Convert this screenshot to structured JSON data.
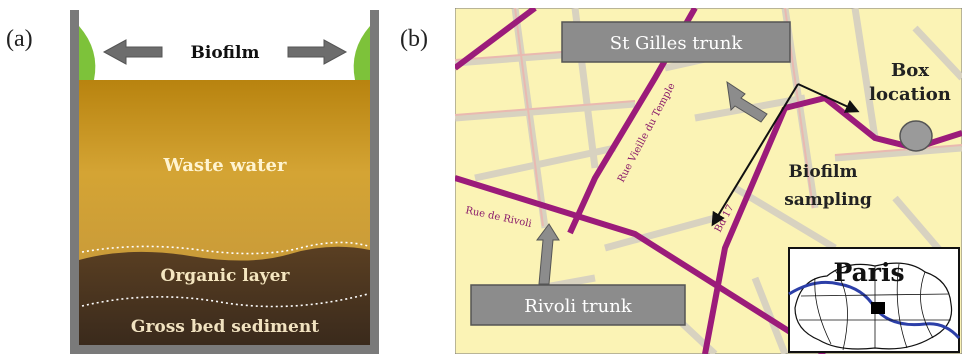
{
  "panel_a": {
    "letter": "(a)",
    "biofilm_label": "Biofilm",
    "waste_water_label": "Waste water",
    "organic_layer_label": "Organic layer",
    "sediment_label": "Gross bed sediment"
  },
  "panel_b": {
    "letter": "(b)",
    "st_gilles_label": "St Gilles trunk",
    "box_location_line1": "Box",
    "box_location_line2": "location",
    "biofilm_sampling_line1": "Biofilm",
    "biofilm_sampling_line2": "sampling",
    "rivoli_label": "Rivoli trunk",
    "paris_label": "Paris"
  },
  "colors": {
    "biofilm_green": "#7dc23a",
    "wall_gray": "#7a7a7a",
    "water_gold": "#c9961e",
    "map_yellow": "#fbf3b5",
    "main_road": "#9b1b7a",
    "inset_river": "#2c3fa8"
  }
}
